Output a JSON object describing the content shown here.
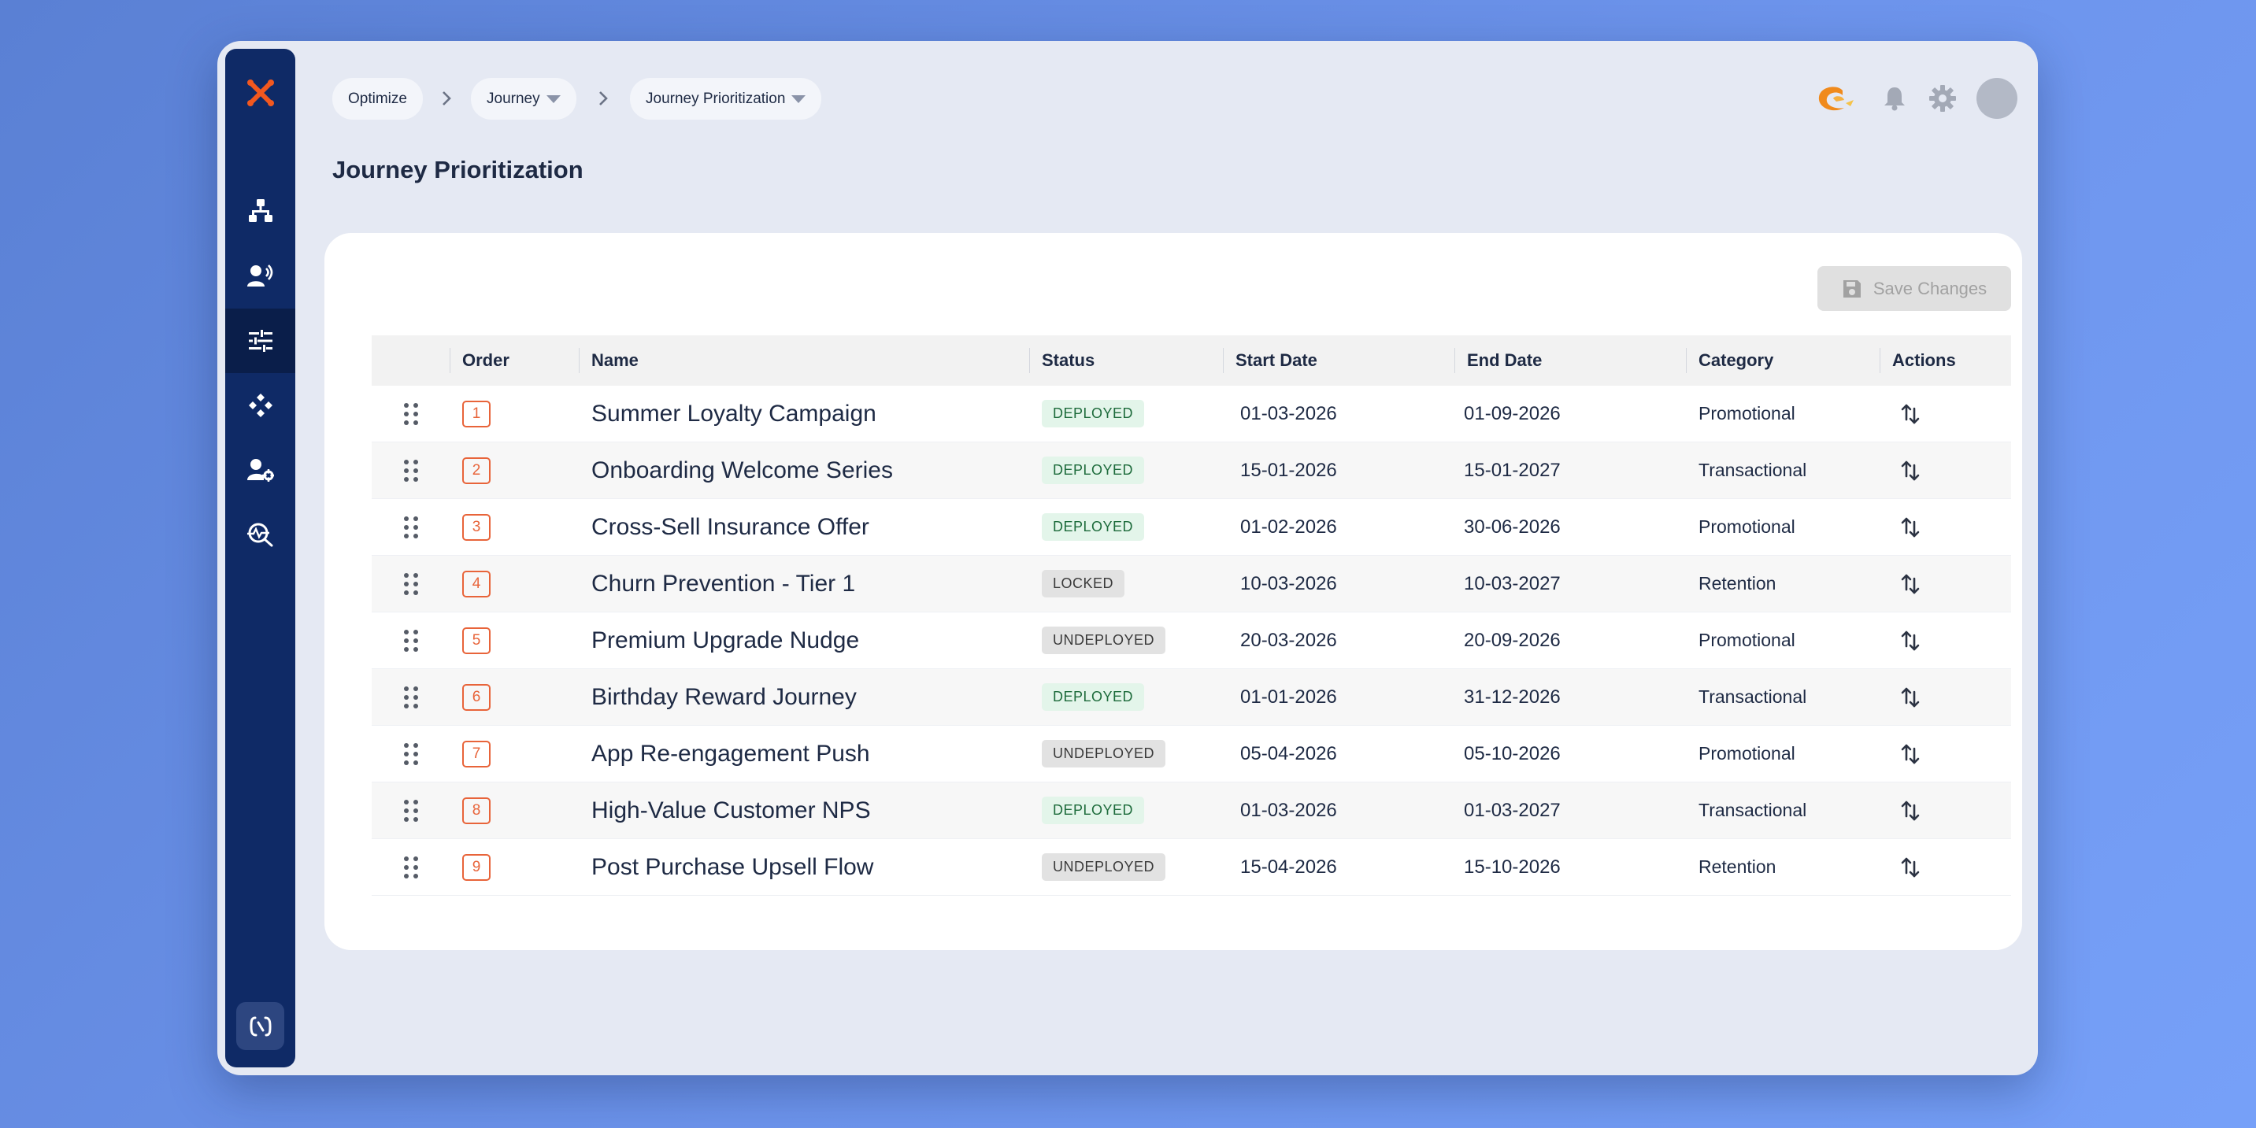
{
  "breadcrumbs": [
    {
      "label": "Optimize",
      "dropdown": false
    },
    {
      "label": "Journey",
      "dropdown": true
    },
    {
      "label": "Journey Prioritization",
      "dropdown": true
    }
  ],
  "page_title": "Journey Prioritization",
  "sidebar": {
    "logo_icon": "x-logo-icon",
    "items": [
      {
        "icon": "hierarchy-icon",
        "active": false
      },
      {
        "icon": "user-voice-icon",
        "active": false
      },
      {
        "icon": "sliders-icon",
        "active": true
      },
      {
        "icon": "diamond-nodes-icon",
        "active": false
      },
      {
        "icon": "user-settings-icon",
        "active": false
      },
      {
        "icon": "analytics-search-icon",
        "active": false
      }
    ],
    "bottom_icon": "flow-toggle-icon"
  },
  "header_icons": [
    "brand-swirl-icon",
    "bell-icon",
    "gear-icon",
    "avatar"
  ],
  "toolbar": {
    "save_label": "Save Changes",
    "save_enabled": false
  },
  "table": {
    "columns": [
      "",
      "Order",
      "Name",
      "Status",
      "Start Date",
      "End Date",
      "Category",
      "Actions"
    ],
    "rows": [
      {
        "order": "1",
        "name": "Summer Loyalty Campaign",
        "status": "DEPLOYED",
        "start": "01-03-2026",
        "end": "01-09-2026",
        "category": "Promotional"
      },
      {
        "order": "2",
        "name": "Onboarding Welcome Series",
        "status": "DEPLOYED",
        "start": "15-01-2026",
        "end": "15-01-2027",
        "category": "Transactional"
      },
      {
        "order": "3",
        "name": "Cross-Sell Insurance Offer",
        "status": "DEPLOYED",
        "start": "01-02-2026",
        "end": "30-06-2026",
        "category": "Promotional"
      },
      {
        "order": "4",
        "name": "Churn Prevention - Tier 1",
        "status": "LOCKED",
        "start": "10-03-2026",
        "end": "10-03-2027",
        "category": "Retention"
      },
      {
        "order": "5",
        "name": "Premium Upgrade Nudge",
        "status": "UNDEPLOYED",
        "start": "20-03-2026",
        "end": "20-09-2026",
        "category": "Promotional"
      },
      {
        "order": "6",
        "name": "Birthday Reward Journey",
        "status": "DEPLOYED",
        "start": "01-01-2026",
        "end": "31-12-2026",
        "category": "Transactional"
      },
      {
        "order": "7",
        "name": "App Re-engagement Push",
        "status": "UNDEPLOYED",
        "start": "05-04-2026",
        "end": "05-10-2026",
        "category": "Promotional"
      },
      {
        "order": "8",
        "name": "High-Value Customer NPS",
        "status": "DEPLOYED",
        "start": "01-03-2026",
        "end": "01-03-2027",
        "category": "Transactional"
      },
      {
        "order": "9",
        "name": "Post Purchase Upsell Flow",
        "status": "UNDEPLOYED",
        "start": "15-04-2026",
        "end": "15-10-2026",
        "category": "Retention"
      }
    ],
    "action_icon": "reorder-arrows-icon",
    "drag_icon": "drag-handle-icon"
  },
  "colors": {
    "sidebar": "#0f2a66",
    "accent": "#e8643a",
    "deployed_bg": "#e3f5ea",
    "deployed_text": "#1d6b3b"
  }
}
